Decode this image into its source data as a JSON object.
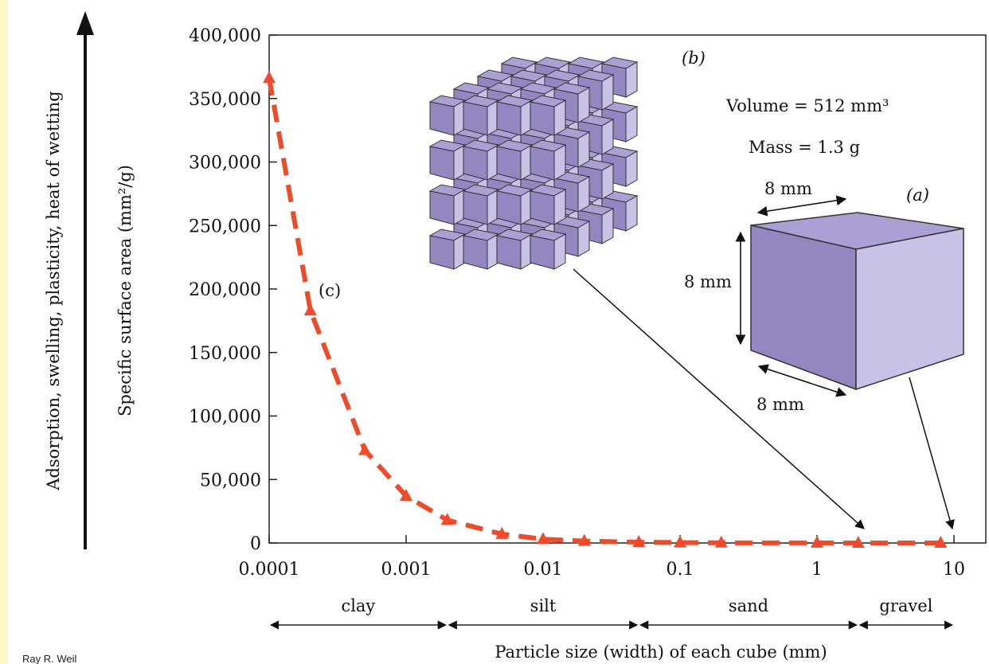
{
  "chart_data": {
    "type": "scatter",
    "x_scale": "log",
    "xlim": [
      0.0001,
      10
    ],
    "ylim": [
      0,
      400000
    ],
    "x_ticks": [
      "0.0001",
      "0.001",
      "0.01",
      "0.1",
      "1",
      "10"
    ],
    "y_ticks": [
      "0",
      "50,000",
      "100,000",
      "150,000",
      "200,000",
      "250,000",
      "300,000",
      "350,000",
      "400,000"
    ],
    "ylabel": "Specific surface area (mm²/g)",
    "left_label": "Adsorption, swelling, plasticity, heat of wetting",
    "xlabel": "Particle size (width) of each cube (mm)",
    "series": [
      {
        "color": "#ee4b2b",
        "x": [
          0.0001,
          0.0002,
          0.0005,
          0.001,
          0.002,
          0.005,
          0.01,
          0.02,
          0.05,
          0.1,
          0.2,
          1,
          2,
          8
        ],
        "y": [
          366000,
          183000,
          73000,
          37000,
          18000,
          7000,
          3000,
          1500,
          600,
          300,
          150,
          50,
          20,
          5
        ]
      }
    ],
    "size_classes": [
      {
        "name": "clay",
        "from": 0.0001,
        "to": 0.002
      },
      {
        "name": "silt",
        "from": 0.002,
        "to": 0.05
      },
      {
        "name": "sand",
        "from": 0.05,
        "to": 2
      },
      {
        "name": "gravel",
        "from": 2,
        "to": 10
      }
    ],
    "annotations": {
      "label_b": "(b)",
      "label_a": "(a)",
      "label_c": "(c)",
      "volume": "Volume = 512 mm³",
      "mass": "Mass = 1.3 g",
      "dim_top": "8 mm",
      "dim_left": "8 mm",
      "dim_bottom": "8 mm"
    }
  },
  "credit": "Ray R. Weil",
  "colors": {
    "background": "#fdf6c3",
    "cube_front": "#9486c0",
    "cube_side": "#c3bde3",
    "cube_top": "#ab9fd3",
    "marker": "#ee4b2b"
  }
}
